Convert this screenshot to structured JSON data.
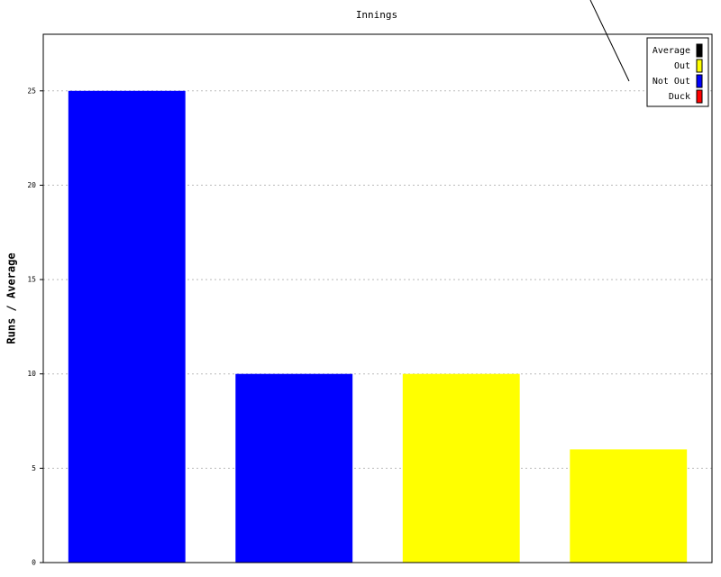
{
  "chart_data": {
    "type": "bar",
    "title": "Innings",
    "y_label": "Runs / Average",
    "categories": [
      null,
      null,
      null,
      null
    ],
    "series": [
      {
        "name": "Average",
        "color": "#000000",
        "values": [
          null,
          null,
          null,
          null
        ]
      },
      {
        "name": "Out",
        "color": "#ffff00",
        "values": [
          null,
          null,
          10,
          6
        ]
      },
      {
        "name": "Not Out",
        "color": "#0000ff",
        "values": [
          25,
          10,
          null,
          null
        ]
      },
      {
        "name": "Duck",
        "color": "#ff0000",
        "values": [
          null,
          null,
          null,
          null
        ]
      }
    ],
    "ylim": [
      0,
      28
    ],
    "yticks": [
      0,
      5,
      10,
      15,
      20,
      25
    ],
    "grid": true,
    "legend": "top-right"
  }
}
